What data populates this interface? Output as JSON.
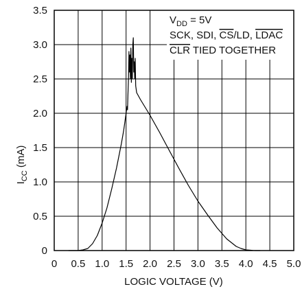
{
  "chart_data": {
    "type": "line",
    "xlabel": "LOGIC VOLTAGE (V)",
    "ylabel_main": "I",
    "ylabel_sub": "CC",
    "ylabel_unit": " (mA)",
    "xlim": [
      0,
      5.0
    ],
    "ylim": [
      0,
      3.5
    ],
    "x_ticks": [
      "0",
      "0.5",
      "1.0",
      "1.5",
      "2.0",
      "2.5",
      "3.0",
      "3.5",
      "4.0",
      "4.5",
      "5.0"
    ],
    "y_ticks": [
      "0",
      "0.5",
      "1.0",
      "1.5",
      "2.0",
      "2.5",
      "3.0",
      "3.5"
    ],
    "grid": true,
    "annotation": {
      "line1_main": "V",
      "line1_sub": "DD",
      "line1_rest": " = 5V",
      "line2_a": "SCK, SDI, ",
      "line2_b": "CS",
      "line2_c": "/LD, ",
      "line2_d": "LDAC",
      "line3_a": "CLR",
      "line3_b": " TIED TOGETHER"
    },
    "series": [
      {
        "x": [
          0.3,
          0.5,
          0.6,
          0.7,
          0.8,
          0.9,
          1.0,
          1.1,
          1.2,
          1.3,
          1.4,
          1.45,
          1.5,
          1.52,
          1.53,
          1.54,
          1.55,
          1.56,
          1.57,
          1.58,
          1.59,
          1.6,
          1.61,
          1.62,
          1.63,
          1.64,
          1.65,
          1.66,
          1.67,
          1.68,
          1.69,
          1.7,
          1.71,
          1.72,
          1.8,
          2.0,
          2.2,
          2.4,
          2.6,
          2.8,
          3.0,
          3.2,
          3.4,
          3.6,
          3.8,
          3.9,
          4.0,
          4.1,
          4.15,
          4.2,
          4.3
        ],
        "y": [
          0,
          0,
          0.01,
          0.03,
          0.1,
          0.22,
          0.4,
          0.62,
          0.9,
          1.2,
          1.55,
          1.75,
          2.0,
          2.1,
          2.05,
          2.3,
          2.5,
          2.9,
          2.6,
          2.85,
          2.5,
          2.95,
          2.45,
          2.8,
          2.5,
          3.0,
          3.1,
          2.6,
          2.75,
          2.5,
          2.8,
          2.4,
          2.35,
          2.3,
          2.2,
          1.97,
          1.72,
          1.46,
          1.2,
          0.95,
          0.72,
          0.52,
          0.33,
          0.17,
          0.06,
          0.03,
          0.01,
          0.005,
          0.002,
          0,
          0
        ]
      }
    ]
  }
}
